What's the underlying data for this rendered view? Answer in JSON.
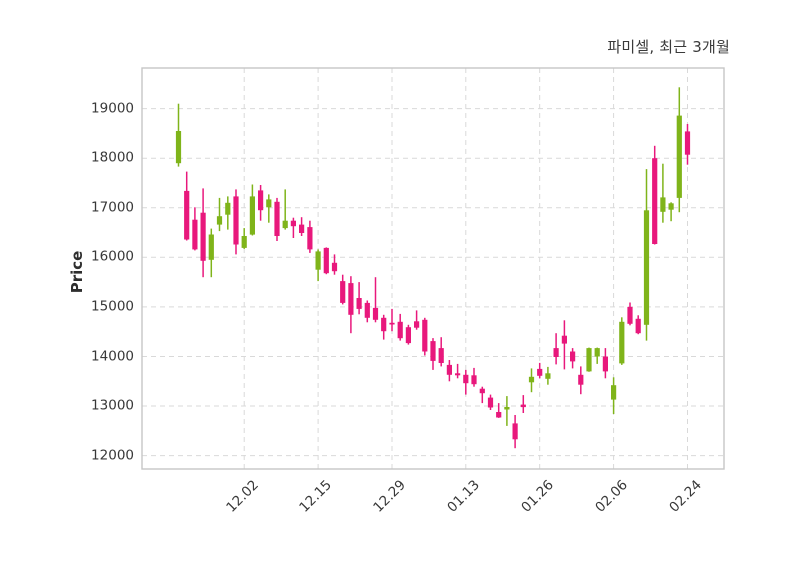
{
  "chart_title": "파미셀, 최근 3개월",
  "chart_data": {
    "type": "candlestick",
    "title": "파미셀, 최근 3개월",
    "xlabel": "",
    "ylabel": "Price",
    "grid": "dashed-both-axes",
    "legend": "none",
    "background": "#ffffff",
    "up_color": "#7fb41a",
    "down_color": "#e8187c",
    "ylim": [
      11730,
      19820
    ],
    "y_ticks": [
      12000,
      13000,
      14000,
      15000,
      16000,
      17000,
      18000,
      19000
    ],
    "x_tick_labels": [
      "12.02",
      "12.15",
      "12.29",
      "01.13",
      "01.26",
      "02.06",
      "02.24"
    ],
    "x_tick_indices": [
      8,
      17,
      26,
      35,
      44,
      53,
      62
    ],
    "candles_ohlc_note": "each row is [open, high, low, close]; close>=open renders up_color (green), else down_color (pink)",
    "candles_ohlc": [
      [
        17900,
        19100,
        17830,
        18550
      ],
      [
        17340,
        17730,
        16340,
        16360
      ],
      [
        16760,
        17010,
        16140,
        16160
      ],
      [
        16900,
        17390,
        15600,
        15930
      ],
      [
        15950,
        16580,
        15600,
        16460
      ],
      [
        16660,
        17200,
        16530,
        16830
      ],
      [
        16860,
        17230,
        16560,
        17100
      ],
      [
        17230,
        17370,
        16060,
        16260
      ],
      [
        16190,
        16590,
        16170,
        16430
      ],
      [
        16460,
        17470,
        16440,
        17230
      ],
      [
        17350,
        17460,
        16740,
        16950
      ],
      [
        17010,
        17270,
        16700,
        17170
      ],
      [
        17120,
        17200,
        16330,
        16430
      ],
      [
        16590,
        17370,
        16560,
        16740
      ],
      [
        16740,
        16800,
        16390,
        16630
      ],
      [
        16660,
        16810,
        16430,
        16490
      ],
      [
        16610,
        16740,
        16090,
        16160
      ],
      [
        15750,
        16160,
        15520,
        16120
      ],
      [
        16190,
        16200,
        15660,
        15680
      ],
      [
        15890,
        16060,
        15650,
        15720
      ],
      [
        15520,
        15650,
        15050,
        15080
      ],
      [
        15480,
        15620,
        14470,
        14840
      ],
      [
        15180,
        15500,
        14850,
        14960
      ],
      [
        15080,
        15130,
        14690,
        14780
      ],
      [
        14980,
        15600,
        14690,
        14740
      ],
      [
        14780,
        14840,
        14340,
        14510
      ],
      [
        14680,
        14960,
        14510,
        14650
      ],
      [
        14700,
        14860,
        14320,
        14370
      ],
      [
        14590,
        14640,
        14240,
        14270
      ],
      [
        14710,
        14930,
        14540,
        14580
      ],
      [
        14740,
        14780,
        14020,
        14100
      ],
      [
        14310,
        14370,
        13730,
        13910
      ],
      [
        14170,
        14390,
        13800,
        13870
      ],
      [
        13830,
        13930,
        13500,
        13630
      ],
      [
        13660,
        13850,
        13560,
        13620
      ],
      [
        13630,
        13730,
        13230,
        13460
      ],
      [
        13620,
        13770,
        13390,
        13440
      ],
      [
        13350,
        13390,
        13060,
        13260
      ],
      [
        13170,
        13230,
        12920,
        12970
      ],
      [
        12880,
        13060,
        12760,
        12770
      ],
      [
        12930,
        13200,
        12600,
        12980
      ],
      [
        12650,
        12820,
        12150,
        12330
      ],
      [
        13030,
        13220,
        12860,
        12980
      ],
      [
        13480,
        13760,
        13280,
        13590
      ],
      [
        13750,
        13870,
        13560,
        13610
      ],
      [
        13550,
        13790,
        13430,
        13660
      ],
      [
        14170,
        14470,
        13840,
        13990
      ],
      [
        14420,
        14730,
        13740,
        14260
      ],
      [
        14100,
        14170,
        13760,
        13900
      ],
      [
        13630,
        13800,
        13240,
        13430
      ],
      [
        13700,
        14180,
        13690,
        14170
      ],
      [
        14000,
        14180,
        13850,
        14170
      ],
      [
        14000,
        14170,
        13560,
        13700
      ],
      [
        13130,
        13580,
        12840,
        13420
      ],
      [
        13860,
        14790,
        13830,
        14700
      ],
      [
        15000,
        15090,
        14630,
        14660
      ],
      [
        14760,
        14830,
        14450,
        14470
      ],
      [
        14640,
        17780,
        14320,
        16950
      ],
      [
        18000,
        18250,
        16260,
        16270
      ],
      [
        16920,
        17890,
        16700,
        17210
      ],
      [
        16960,
        17110,
        16730,
        17090
      ],
      [
        17200,
        19430,
        16910,
        18860
      ],
      [
        18540,
        18690,
        17870,
        18070
      ]
    ]
  }
}
